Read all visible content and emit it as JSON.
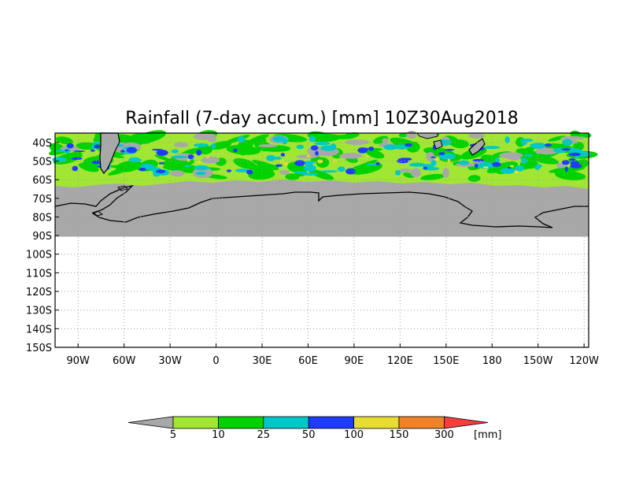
{
  "title": "Rainfall (7-day accum.) [mm] 10Z30Aug2018",
  "map": {
    "lat_labels": [
      "40S",
      "50S",
      "60S",
      "70S",
      "80S",
      "90S",
      "100S",
      "110S",
      "120S",
      "130S",
      "140S",
      "150S"
    ],
    "lon_labels": [
      "90W",
      "60W",
      "30W",
      "0",
      "30E",
      "60E",
      "90E",
      "120E",
      "150E",
      "180",
      "150W",
      "120W"
    ],
    "land_color": "#a8a8a8",
    "grid": "dotted"
  },
  "legend": {
    "unit": "[mm]",
    "thresholds": [
      "5",
      "10",
      "25",
      "50",
      "100",
      "150",
      "300"
    ],
    "colors": [
      "#a8a8a8",
      "#a0e632",
      "#00d200",
      "#00c8c8",
      "#1e3cff",
      "#e6dc32",
      "#f08228",
      "#fa3c3c"
    ]
  }
}
